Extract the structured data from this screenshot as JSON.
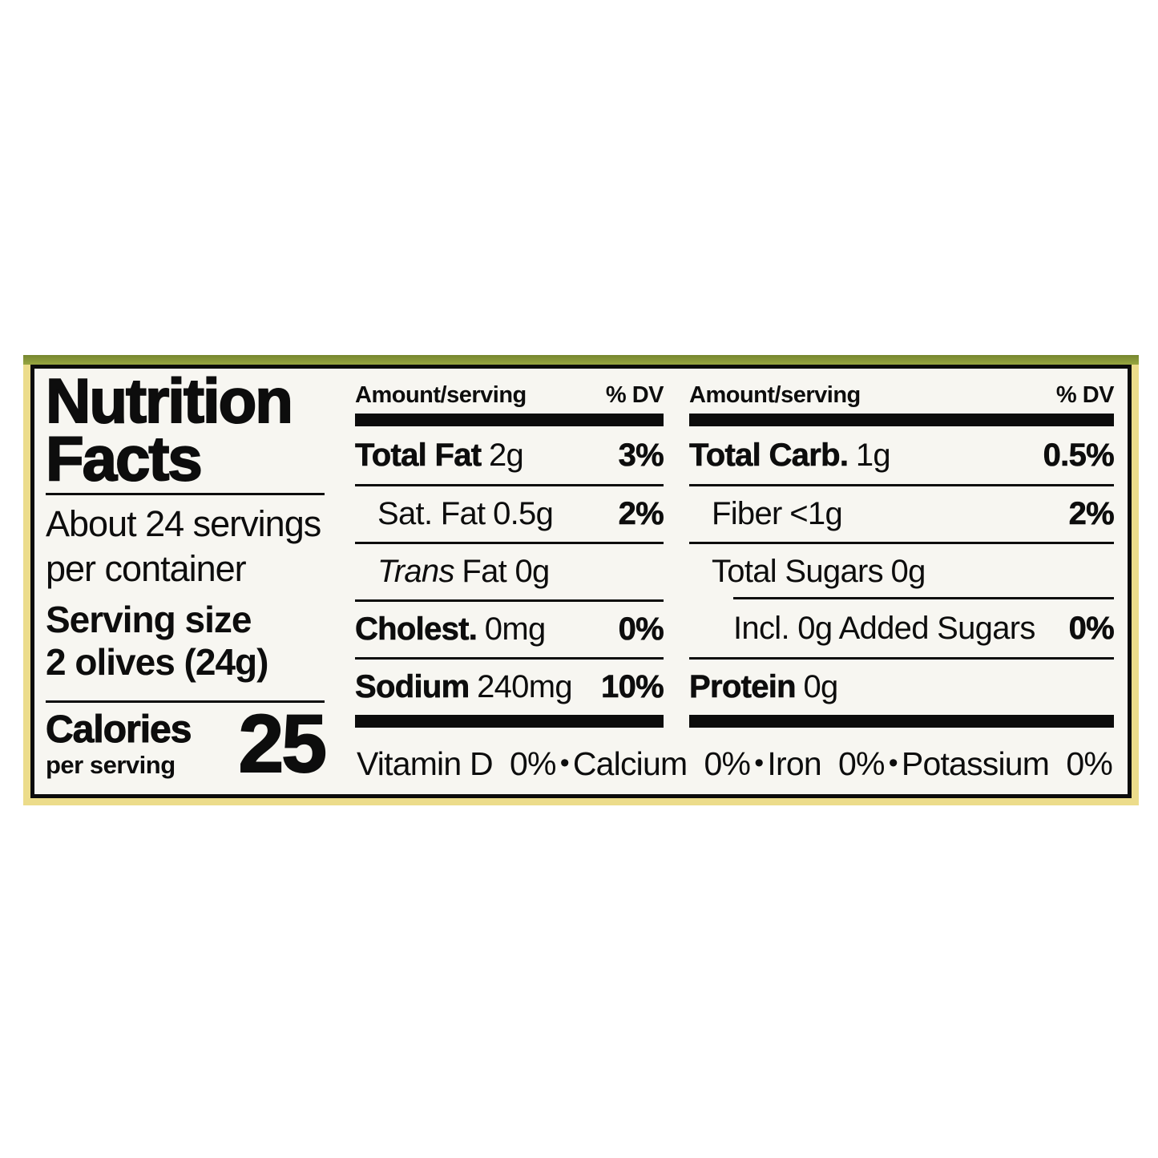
{
  "label": {
    "title_line1": "Nutrition",
    "title_line2": "Facts",
    "servings_line1": "About 24 servings",
    "servings_line2": "per container",
    "serving_size_label": "Serving size",
    "serving_size_value": "2 olives (24g)",
    "calories_label": "Calories",
    "calories_sub": "per serving",
    "calories_value": "25",
    "columns": [
      {
        "header_left": "Amount/serving",
        "header_right": "% DV",
        "rows": [
          {
            "name": "Total Fat",
            "amount": "2g",
            "dv": "3%"
          },
          {
            "name": "Sat. Fat",
            "amount": "0.5g",
            "dv": "2%"
          },
          {
            "name": "Trans",
            "amount": "Fat 0g",
            "dv": ""
          },
          {
            "name": "Cholest.",
            "amount": "0mg",
            "dv": "0%"
          },
          {
            "name": "Sodium",
            "amount": "240mg",
            "dv": "10%"
          }
        ]
      },
      {
        "header_left": "Amount/serving",
        "header_right": "% DV",
        "rows": [
          {
            "name": "Total Carb.",
            "amount": "1g",
            "dv": "0.5%"
          },
          {
            "name": "Fiber",
            "amount": "<1g",
            "dv": "2%"
          },
          {
            "name": "Total Sugars",
            "amount": "0g",
            "dv": ""
          },
          {
            "name": "Incl. 0g Added Sugars",
            "amount": "",
            "dv": "0%"
          },
          {
            "name": "Protein",
            "amount": "0g",
            "dv": ""
          }
        ]
      }
    ],
    "micronutrients": [
      {
        "name": "Vitamin D",
        "dv": "0%"
      },
      {
        "name": "Calcium",
        "dv": "0%"
      },
      {
        "name": "Iron",
        "dv": "0%"
      },
      {
        "name": "Potassium",
        "dv": "0%"
      }
    ],
    "separator": "•",
    "colors": {
      "top_stripe": "#97a640",
      "outer_border": "#ecdc8b",
      "label_bg": "#f7f6f1",
      "text": "#0d0d0d"
    }
  }
}
